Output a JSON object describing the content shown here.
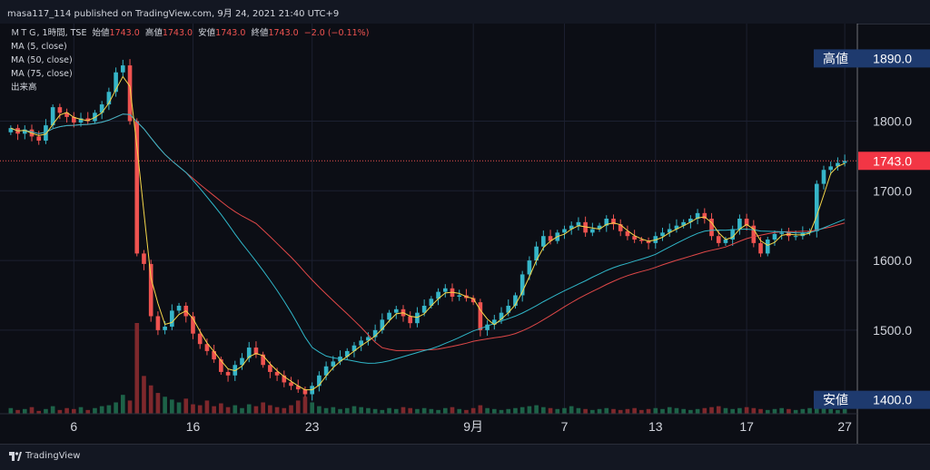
{
  "header": {
    "publish_text": "masa117_114 published on TradingView.com, 9月 24, 2021 21:40 UTC+9"
  },
  "legend": {
    "symbol_line": "ＭＴＧ, 1時間, TSE",
    "ohlc": {
      "open_label": "始値",
      "open": "1743.0",
      "high_label": "高値",
      "high": "1743.0",
      "low_label": "安値",
      "low": "1743.0",
      "close_label": "終値",
      "close": "1743.0",
      "change": "−2.0 (−0.11%)"
    },
    "indicators": [
      "MA (5, close)",
      "MA (50, close)",
      "MA (75, close)",
      "出来高"
    ]
  },
  "footer": {
    "brand": "TradingView"
  },
  "colors": {
    "up": "#26a69a",
    "up_body": "#36b5c8",
    "down": "#ef5350",
    "ma5": "#f5d74a",
    "ma50": "#30b7c9",
    "ma75": "#e04848",
    "label_bg": "#1e3a6e",
    "price_tag": "#f23645"
  },
  "chart_data": {
    "type": "candlestick",
    "ylim": [
      1380,
      1940
    ],
    "y_ticks": [
      1800,
      1700,
      1600,
      1500
    ],
    "x_ticks": [
      {
        "label": "6",
        "i": 9
      },
      {
        "label": "16",
        "i": 26
      },
      {
        "label": "23",
        "i": 43
      },
      {
        "label": "9月",
        "i": 66
      },
      {
        "label": "7",
        "i": 79
      },
      {
        "label": "13",
        "i": 92
      },
      {
        "label": "17",
        "i": 105
      },
      {
        "label": "27",
        "i": 119
      }
    ],
    "price_labels": {
      "high": {
        "title": "高値",
        "value": "1890.0",
        "y": 1890
      },
      "current": {
        "value": "1743.0",
        "y": 1743
      },
      "low": {
        "title": "安値",
        "value": "1400.0",
        "y": 1400
      }
    },
    "closes": [
      1790,
      1782,
      1788,
      1778,
      1772,
      1794,
      1820,
      1812,
      1806,
      1798,
      1804,
      1800,
      1812,
      1824,
      1842,
      1870,
      1880,
      1800,
      1610,
      1595,
      1520,
      1500,
      1505,
      1528,
      1535,
      1520,
      1495,
      1480,
      1470,
      1458,
      1440,
      1435,
      1450,
      1460,
      1475,
      1465,
      1450,
      1440,
      1435,
      1425,
      1420,
      1415,
      1408,
      1420,
      1435,
      1448,
      1455,
      1462,
      1470,
      1478,
      1485,
      1490,
      1500,
      1515,
      1525,
      1530,
      1520,
      1510,
      1525,
      1535,
      1545,
      1555,
      1560,
      1548,
      1550,
      1546,
      1540,
      1500,
      1508,
      1515,
      1525,
      1535,
      1550,
      1580,
      1600,
      1620,
      1635,
      1628,
      1640,
      1645,
      1650,
      1655,
      1640,
      1645,
      1650,
      1660,
      1652,
      1642,
      1635,
      1630,
      1628,
      1625,
      1635,
      1640,
      1645,
      1650,
      1655,
      1660,
      1668,
      1660,
      1635,
      1625,
      1630,
      1645,
      1660,
      1650,
      1625,
      1610,
      1630,
      1638,
      1640,
      1635,
      1635,
      1640,
      1642,
      1710,
      1730,
      1735,
      1740,
      1743
    ],
    "volumes": [
      6,
      4,
      5,
      7,
      3,
      5,
      8,
      4,
      6,
      5,
      7,
      4,
      6,
      8,
      9,
      12,
      20,
      14,
      96,
      40,
      30,
      22,
      18,
      15,
      12,
      16,
      10,
      9,
      14,
      8,
      11,
      7,
      9,
      6,
      10,
      8,
      12,
      9,
      7,
      6,
      9,
      14,
      18,
      12,
      8,
      6,
      7,
      5,
      6,
      8,
      7,
      6,
      5,
      4,
      6,
      5,
      7,
      6,
      5,
      6,
      5,
      4,
      6,
      7,
      5,
      4,
      6,
      9,
      6,
      5,
      4,
      5,
      6,
      7,
      8,
      9,
      7,
      6,
      5,
      6,
      8,
      6,
      5,
      4,
      5,
      6,
      5,
      4,
      5,
      6,
      4,
      5,
      6,
      5,
      7,
      6,
      5,
      4,
      5,
      6,
      7,
      8,
      6,
      5,
      6,
      7,
      6,
      5,
      4,
      5,
      6,
      5,
      4,
      5,
      6,
      8,
      6,
      5,
      4,
      5
    ]
  }
}
